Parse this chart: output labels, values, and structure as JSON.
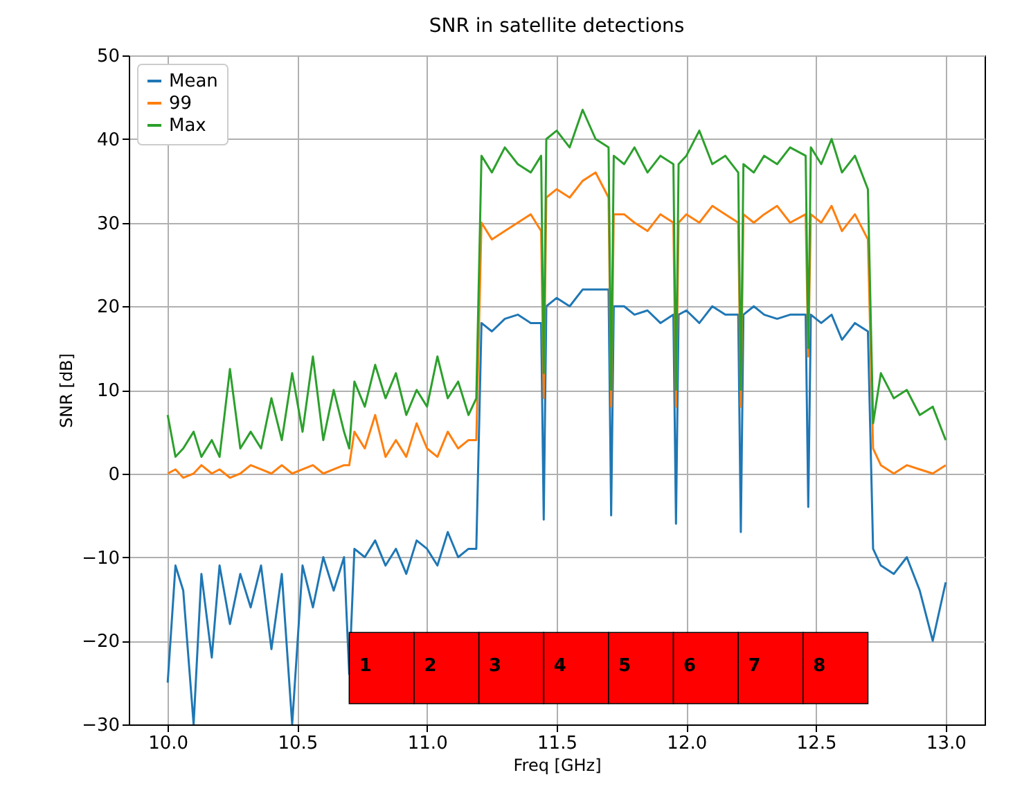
{
  "chart_data": {
    "type": "line",
    "title": "SNR in satellite detections",
    "xlabel": "Freq [GHz]",
    "ylabel": "SNR [dB]",
    "x": [
      10.0,
      10.03,
      10.06,
      10.1,
      10.13,
      10.17,
      10.2,
      10.24,
      10.28,
      10.32,
      10.36,
      10.4,
      10.44,
      10.48,
      10.52,
      10.56,
      10.6,
      10.64,
      10.68,
      10.7,
      10.72,
      10.76,
      10.8,
      10.84,
      10.88,
      10.92,
      10.96,
      11.0,
      11.04,
      11.08,
      11.12,
      11.16,
      11.19,
      11.21,
      11.25,
      11.3,
      11.35,
      11.4,
      11.44,
      11.45,
      11.46,
      11.5,
      11.55,
      11.6,
      11.65,
      11.7,
      11.71,
      11.72,
      11.76,
      11.8,
      11.85,
      11.9,
      11.95,
      11.96,
      11.97,
      12.0,
      12.05,
      12.1,
      12.15,
      12.2,
      12.21,
      12.22,
      12.26,
      12.3,
      12.35,
      12.4,
      12.46,
      12.47,
      12.48,
      12.52,
      12.56,
      12.6,
      12.65,
      12.7,
      12.72,
      12.75,
      12.8,
      12.85,
      12.9,
      12.95,
      13.0
    ],
    "series": [
      {
        "name": "Mean",
        "color": "#1f77b4",
        "values": [
          -25,
          -11,
          -14,
          -30,
          -12,
          -22,
          -11,
          -18,
          -12,
          -16,
          -11,
          -21,
          -12,
          -30,
          -11,
          -16,
          -10,
          -14,
          -10,
          -24,
          -9,
          -10,
          -8,
          -11,
          -9,
          -12,
          -8,
          -9,
          -11,
          -7,
          -10,
          -9,
          -9,
          18,
          17,
          18.5,
          19,
          18,
          18,
          -5.5,
          20,
          21,
          20,
          22,
          22,
          22,
          -5,
          20,
          20,
          19,
          19.5,
          18,
          19,
          -6,
          19,
          19.5,
          18,
          20,
          19,
          19,
          -7,
          19,
          20,
          19,
          18.5,
          19,
          19,
          -4,
          19,
          18,
          19,
          16,
          18,
          17,
          -9,
          -11,
          -12,
          -10,
          -14,
          -20,
          -13
        ]
      },
      {
        "name": "99",
        "color": "#ff7f0e",
        "values": [
          0,
          0.5,
          -0.5,
          0,
          1,
          0,
          0.5,
          -0.5,
          0,
          1,
          0.5,
          0,
          1,
          0,
          0.5,
          1,
          0,
          0.5,
          1,
          1,
          5,
          3,
          7,
          2,
          4,
          2,
          6,
          3,
          2,
          5,
          3,
          4,
          4,
          30,
          28,
          29,
          30,
          31,
          29,
          9,
          33,
          34,
          33,
          35,
          36,
          33,
          8,
          31,
          31,
          30,
          29,
          31,
          30,
          8,
          30,
          31,
          30,
          32,
          31,
          30,
          8,
          31,
          30,
          31,
          32,
          30,
          31,
          14,
          31,
          30,
          32,
          29,
          31,
          28,
          3,
          1,
          0,
          1,
          0.5,
          0,
          1
        ]
      },
      {
        "name": "Max",
        "color": "#2ca02c",
        "values": [
          7,
          2,
          3,
          5,
          2,
          4,
          2,
          12.5,
          3,
          5,
          3,
          9,
          4,
          12,
          5,
          14,
          4,
          10,
          5,
          3,
          11,
          8,
          13,
          9,
          12,
          7,
          10,
          8,
          14,
          9,
          11,
          7,
          9,
          38,
          36,
          39,
          37,
          36,
          38,
          12,
          40,
          41,
          39,
          43.5,
          40,
          39,
          10,
          38,
          37,
          39,
          36,
          38,
          37,
          10,
          37,
          38,
          41,
          37,
          38,
          36,
          10,
          37,
          36,
          38,
          37,
          39,
          38,
          15,
          39,
          37,
          40,
          36,
          38,
          34,
          6,
          12,
          9,
          10,
          7,
          8,
          4
        ]
      }
    ],
    "xlim": [
      9.85,
      13.15
    ],
    "xticks": [
      {
        "value": 10,
        "label": "10.0"
      },
      {
        "value": 10.5,
        "label": "10.5"
      },
      {
        "value": 11,
        "label": "11.0"
      },
      {
        "value": 11.5,
        "label": "11.5"
      },
      {
        "value": 12,
        "label": "12.0"
      },
      {
        "value": 12.5,
        "label": "12.5"
      },
      {
        "value": 13,
        "label": "13.0"
      }
    ],
    "ylim": [
      -30,
      50
    ],
    "yticks": [
      -30,
      -20,
      -10,
      0,
      10,
      20,
      30,
      40,
      50
    ],
    "grid": true,
    "legend": "top left",
    "bands": [
      {
        "axis": "x",
        "from": 10.7,
        "to": 10.95,
        "label": "1",
        "color": "#ff0000"
      },
      {
        "axis": "x",
        "from": 10.95,
        "to": 11.2,
        "label": "2",
        "color": "#ff0000"
      },
      {
        "axis": "x",
        "from": 11.2,
        "to": 11.45,
        "label": "3",
        "color": "#ff0000"
      },
      {
        "axis": "x",
        "from": 11.45,
        "to": 11.7,
        "label": "4",
        "color": "#ff0000"
      },
      {
        "axis": "x",
        "from": 11.7,
        "to": 11.95,
        "label": "5",
        "color": "#ff0000"
      },
      {
        "axis": "x",
        "from": 11.95,
        "to": 12.2,
        "label": "6",
        "color": "#ff0000"
      },
      {
        "axis": "x",
        "from": 12.2,
        "to": 12.45,
        "label": "7",
        "color": "#ff0000"
      },
      {
        "axis": "x",
        "from": 12.45,
        "to": 12.7,
        "label": "8",
        "color": "#ff0000"
      }
    ]
  }
}
